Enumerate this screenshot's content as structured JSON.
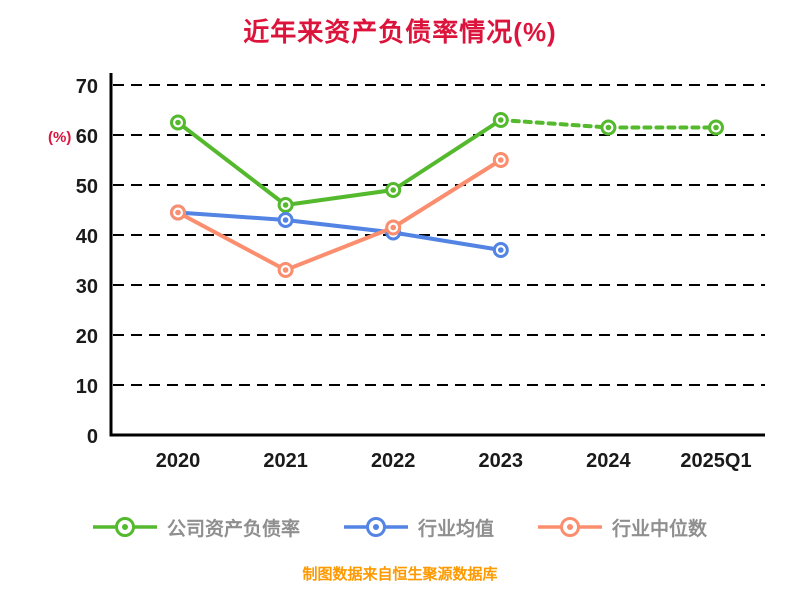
{
  "title": "近年来资产负债率情况(%)",
  "y_axis_label": "(%)",
  "caption": "制图数据来自恒生聚源数据库",
  "chart_data": {
    "type": "line",
    "title": "近年来资产负债率情况(%)",
    "categories": [
      "2020",
      "2021",
      "2022",
      "2023",
      "2024",
      "2025Q1"
    ],
    "series": [
      {
        "name": "公司资产负债率",
        "color": "#55b92e",
        "values": [
          62.5,
          46,
          49,
          63,
          61.5,
          61.5
        ],
        "dash_from_index": 3
      },
      {
        "name": "行业均值",
        "color": "#5384e4",
        "values": [
          44.5,
          43,
          40.5,
          37,
          null,
          null
        ]
      },
      {
        "name": "行业中位数",
        "color": "#fa8e6e",
        "values": [
          44.5,
          33,
          41.5,
          55,
          null,
          null
        ]
      }
    ],
    "xlabel": "",
    "ylabel": "(%)",
    "ylim": [
      0,
      70
    ],
    "ytick_step": 10,
    "grid": "dashed-horizontal",
    "legend_position": "bottom"
  },
  "colors": {
    "title": "#dc143c",
    "axis_label": "#dc143c",
    "caption": "#ff9900",
    "axis": "#000000",
    "grid": "#000000",
    "tick_label": "#1a1a1a",
    "legend_text": "#8f8f8f"
  }
}
